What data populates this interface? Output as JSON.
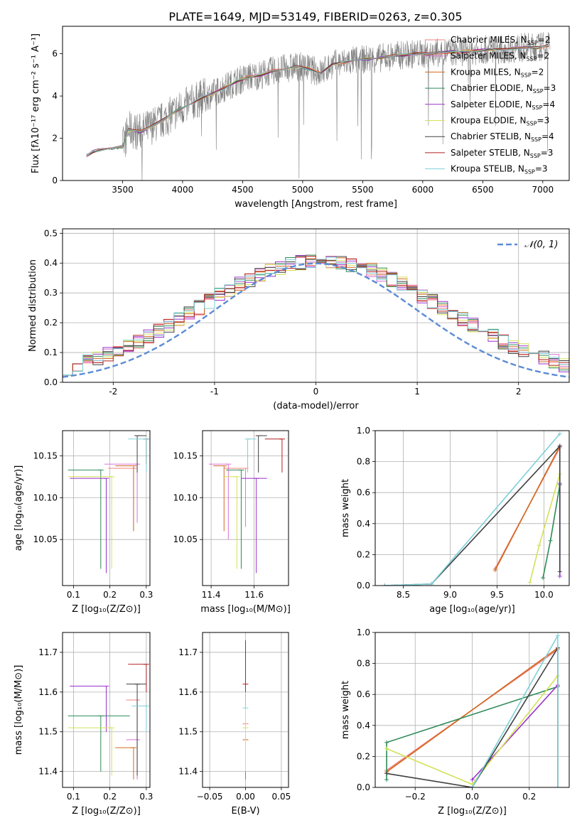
{
  "figure_title": "PLATE=1649, MJD=53149, FIBERID=0263, z=0.305",
  "series_legend": [
    {
      "imf": "Chabrier",
      "lib": "MILES",
      "nssp": "2",
      "color": "#f08080"
    },
    {
      "imf": "Salpeter",
      "lib": "MILES",
      "nssp": "2",
      "color": "#da70d6"
    },
    {
      "imf": "Kroupa",
      "lib": "MILES",
      "nssp": "2",
      "color": "#d2691e"
    },
    {
      "imf": "Chabrier",
      "lib": "ELODIE",
      "nssp": "3",
      "color": "#2e8b57"
    },
    {
      "imf": "Salpeter",
      "lib": "ELODIE",
      "nssp": "4",
      "color": "#9932cc"
    },
    {
      "imf": "Kroupa",
      "lib": "ELODIE",
      "nssp": "3",
      "color": "#d4e157"
    },
    {
      "imf": "Chabrier",
      "lib": "STELIB",
      "nssp": "4",
      "color": "#404040"
    },
    {
      "imf": "Salpeter",
      "lib": "STELIB",
      "nssp": "3",
      "color": "#b22222"
    },
    {
      "imf": "Kroupa",
      "lib": "STELIB",
      "nssp": "3",
      "color": "#7fd1d8"
    }
  ],
  "legend_sub": "SSP",
  "chart_data": [
    {
      "id": "spectrum",
      "type": "line",
      "xlabel": "wavelength [Angstrom, rest frame]",
      "ylabel": "Flux [fλ10⁻¹⁷ erg cm⁻² s⁻¹ A⁻¹]",
      "xlim": [
        3000,
        7220
      ],
      "ylim": [
        0,
        7.3
      ],
      "xticks": [
        3500,
        4000,
        4500,
        5000,
        5500,
        6000,
        6500,
        7000
      ],
      "yticks": [
        0,
        2,
        4,
        6
      ],
      "data_color": "#808080",
      "model_x": [
        3200,
        3250,
        3300,
        3400,
        3500,
        3550,
        3650,
        3750,
        3850,
        3950,
        4050,
        4150,
        4250,
        4350,
        4450,
        4550,
        4650,
        4750,
        4850,
        4950,
        5050,
        5150,
        5250,
        5350,
        5450,
        5550,
        5650,
        5750,
        5850,
        5950,
        6050,
        6150,
        6250,
        6350,
        6450,
        6550,
        6650,
        6750,
        6850,
        6950,
        7050
      ],
      "model_y": [
        1.2,
        1.35,
        1.45,
        1.5,
        1.6,
        2.4,
        2.3,
        2.6,
        2.9,
        3.3,
        3.6,
        3.9,
        4.1,
        4.4,
        4.7,
        4.9,
        5.0,
        5.2,
        5.3,
        5.4,
        5.3,
        5.1,
        5.5,
        5.6,
        5.7,
        5.75,
        5.8,
        5.9,
        5.95,
        6.0,
        6.0,
        6.05,
        6.1,
        6.1,
        6.15,
        6.2,
        6.2,
        6.25,
        6.3,
        6.3,
        6.4
      ]
    },
    {
      "id": "residuals",
      "type": "histogram",
      "xlabel": "(data-model)/error",
      "ylabel": "Normed distribution",
      "xlim": [
        -2.5,
        2.5
      ],
      "ylim": [
        0,
        0.515
      ],
      "xticks": [
        -2,
        -1,
        0,
        1,
        2
      ],
      "yticks": [
        0.0,
        0.1,
        0.2,
        0.3,
        0.4,
        0.5
      ],
      "gauss_label": "𝒩(0, 1)",
      "gauss_color": "#5b8bd6"
    },
    {
      "id": "age_vs_Z",
      "type": "errorbar",
      "xlabel": "Z [log₁₀(Z/Z⊙)]",
      "ylabel": "age  [log₁₀(age/yr)]",
      "xlim": [
        0.07,
        0.31
      ],
      "ylim": [
        9.995,
        10.18
      ],
      "xticks": [
        0.1,
        0.2,
        0.3
      ],
      "yticks": [
        10.05,
        10.1,
        10.15
      ],
      "points": [
        {
          "s": 0,
          "x": 0.265,
          "y": 10.135,
          "xerr": [
            0.07,
            0.0
          ],
          "yerr": [
            0.0,
            0.0
          ],
          "ylow": 10.06
        },
        {
          "s": 1,
          "x": 0.275,
          "y": 10.14,
          "xerr": [
            0.09,
            0.0
          ],
          "yerr": [
            0.0,
            0.0
          ],
          "ylow": 10.07
        },
        {
          "s": 2,
          "x": 0.265,
          "y": 10.138,
          "xerr": [
            0.05,
            0.0
          ],
          "yerr": [
            0.0,
            0.0
          ],
          "ylow": 10.06
        },
        {
          "s": 3,
          "x": 0.175,
          "y": 10.133,
          "xerr": [
            0.09,
            0.0
          ],
          "yerr": [
            0.0,
            0.0
          ],
          "ylow": 10.015
        },
        {
          "s": 4,
          "x": 0.19,
          "y": 10.123,
          "xerr": [
            0.1,
            0.0
          ],
          "yerr": [
            0.0,
            0.0
          ],
          "ylow": 10.01
        },
        {
          "s": 5,
          "x": 0.205,
          "y": 10.125,
          "xerr": [
            0.12,
            0.0
          ],
          "yerr": [
            0.0,
            0.0
          ],
          "ylow": 10.015
        },
        {
          "s": 6,
          "x": 0.275,
          "y": 10.174,
          "xerr": [
            0.0,
            0.025
          ],
          "yerr": [
            0.0,
            0.0
          ],
          "ylow": 10.13
        },
        {
          "s": 7,
          "x": 0.3,
          "y": 10.17,
          "xerr": [
            0.0,
            0.0
          ],
          "yerr": [
            0.0,
            0.0
          ],
          "ylow": 10.14
        },
        {
          "s": 8,
          "x": 0.3,
          "y": 10.17,
          "xerr": [
            0.05,
            0.0
          ],
          "yerr": [
            0.0,
            0.0
          ],
          "ylow": 10.13
        }
      ]
    },
    {
      "id": "age_vs_mass",
      "type": "errorbar",
      "xlabel": "mass [log₁₀(M/M⊙)]",
      "ylabel": "",
      "xlim": [
        11.36,
        11.76
      ],
      "ylim": [
        9.995,
        10.18
      ],
      "xticks": [
        11.4,
        11.6
      ],
      "yticks": [
        10.05,
        10.1,
        10.15
      ],
      "points": [
        {
          "s": 0,
          "x": 11.56,
          "y": 10.135,
          "xerr": [
            0.1,
            0.0
          ],
          "ylow": 10.065
        },
        {
          "s": 1,
          "x": 11.48,
          "y": 10.14,
          "xerr": [
            0.09,
            0.0
          ],
          "ylow": 10.05
        },
        {
          "s": 2,
          "x": 11.46,
          "y": 10.138,
          "xerr": [
            0.05,
            0.0
          ],
          "ylow": 10.06
        },
        {
          "s": 3,
          "x": 11.54,
          "y": 10.133,
          "xerr": [
            0.07,
            0.0
          ],
          "ylow": 10.015
        },
        {
          "s": 4,
          "x": 11.61,
          "y": 10.123,
          "xerr": [
            0.07,
            0.05
          ],
          "ylow": 10.01
        },
        {
          "s": 5,
          "x": 11.52,
          "y": 10.125,
          "xerr": [
            0.06,
            0.0
          ],
          "ylow": 10.015
        },
        {
          "s": 6,
          "x": 11.62,
          "y": 10.174,
          "xerr": [
            0.0,
            0.04
          ],
          "ylow": 10.13
        },
        {
          "s": 7,
          "x": 11.73,
          "y": 10.17,
          "xerr": [
            0.08,
            0.0
          ],
          "ylow": 10.13
        },
        {
          "s": 8,
          "x": 11.57,
          "y": 10.17,
          "xerr": [
            0.0,
            0.04
          ],
          "ylow": 10.13
        }
      ]
    },
    {
      "id": "weight_vs_age",
      "type": "line",
      "xlabel": "age  [log₁₀(age/yr)]",
      "ylabel": "mass weight",
      "xlim": [
        8.2,
        10.27
      ],
      "ylim": [
        0,
        1.0
      ],
      "xticks": [
        8.5,
        9.0,
        9.5,
        10.0
      ],
      "yticks": [
        0.0,
        0.2,
        0.4,
        0.6,
        0.8,
        1.0
      ],
      "series": [
        {
          "s": 0,
          "x": [
            9.48,
            10.17
          ],
          "y": [
            0.11,
            0.89
          ]
        },
        {
          "s": 2,
          "x": [
            9.48,
            10.17
          ],
          "y": [
            0.1,
            0.9
          ]
        },
        {
          "s": 3,
          "x": [
            9.99,
            10.07,
            10.17
          ],
          "y": [
            0.05,
            0.29,
            0.65
          ]
        },
        {
          "s": 4,
          "x": [
            10.17,
            10.17
          ],
          "y": [
            0.06,
            0.66
          ]
        },
        {
          "s": 5,
          "x": [
            9.85,
            9.95,
            10.17
          ],
          "y": [
            0.02,
            0.26,
            0.72
          ]
        },
        {
          "s": 6,
          "x": [
            8.3,
            8.8,
            10.17
          ],
          "y": [
            0.0,
            0.01,
            0.9
          ]
        },
        {
          "s": 6,
          "x": [
            10.17,
            10.17
          ],
          "y": [
            0.09,
            0.9
          ]
        },
        {
          "s": 8,
          "x": [
            8.3,
            8.8,
            10.17
          ],
          "y": [
            0.0,
            0.01,
            0.98
          ]
        }
      ]
    },
    {
      "id": "mass_vs_Z",
      "type": "errorbar",
      "xlabel": "Z [log₁₀(Z/Z⊙)]",
      "ylabel": "mass [log₁₀(M/M⊙)]",
      "xlim": [
        0.07,
        0.31
      ],
      "ylim": [
        11.36,
        11.75
      ],
      "xticks": [
        0.1,
        0.2,
        0.3
      ],
      "yticks": [
        11.4,
        11.5,
        11.6,
        11.7
      ],
      "points": [
        {
          "s": 0,
          "x": 0.275,
          "y": 11.58,
          "xerr": [
            0.03,
            0.0
          ],
          "ylow": 11.43
        },
        {
          "s": 1,
          "x": 0.275,
          "y": 11.48,
          "xerr": [
            0.03,
            0.0
          ],
          "ylow": 11.38
        },
        {
          "s": 2,
          "x": 0.265,
          "y": 11.46,
          "xerr": [
            0.05,
            0.0
          ],
          "ylow": 11.38
        },
        {
          "s": 3,
          "x": 0.175,
          "y": 11.54,
          "xerr": [
            0.09,
            0.08
          ],
          "ylow": 11.4
        },
        {
          "s": 4,
          "x": 0.19,
          "y": 11.615,
          "xerr": [
            0.1,
            0.0
          ],
          "ylow": 11.5
        },
        {
          "s": 5,
          "x": 0.205,
          "y": 11.51,
          "xerr": [
            0.12,
            0.0
          ],
          "ylow": 11.39
        },
        {
          "s": 6,
          "x": 0.275,
          "y": 11.62,
          "xerr": [
            0.03,
            0.025
          ],
          "ylow": 11.39
        },
        {
          "s": 7,
          "x": 0.3,
          "y": 11.67,
          "xerr": [
            0.05,
            0.0
          ],
          "ylow": 11.6
        },
        {
          "s": 8,
          "x": 0.3,
          "y": 11.565,
          "xerr": [
            0.04,
            0.0
          ],
          "ylow": 11.5
        }
      ]
    },
    {
      "id": "mass_vs_ebv",
      "type": "errorbar",
      "xlabel": "E(B-V)",
      "ylabel": "",
      "xlim": [
        -0.06,
        0.06
      ],
      "ylim": [
        11.36,
        11.75
      ],
      "xticks": [
        -0.05,
        0.0,
        0.05
      ],
      "xticklabels": [
        "−0.05",
        "0.00",
        "0.05"
      ],
      "yticks": [
        11.4,
        11.5,
        11.6,
        11.7
      ],
      "points": [
        {
          "s": 7,
          "x": 0.0,
          "y": 11.62,
          "ylow": 11.52,
          "yhigh": 11.73
        },
        {
          "s": 0,
          "x": 0.0,
          "y": 11.52,
          "ylow": 11.4,
          "yhigh": 11.6
        },
        {
          "s": 2,
          "x": 0.0,
          "y": 11.48,
          "ylow": 11.38,
          "yhigh": 11.55
        },
        {
          "s": 8,
          "x": 0.0,
          "y": 11.56,
          "ylow": 11.45,
          "yhigh": 11.6
        },
        {
          "s": 5,
          "x": 0.0,
          "y": 11.51,
          "ylow": 11.4,
          "yhigh": 11.56
        }
      ]
    },
    {
      "id": "weight_vs_Z",
      "type": "line",
      "xlabel": "Z [log₁₀(Z/Z⊙)]",
      "ylabel": "mass weight",
      "xlim": [
        -0.34,
        0.34
      ],
      "ylim": [
        0,
        1.0
      ],
      "xticks": [
        -0.2,
        0.0,
        0.2
      ],
      "xticklabels": [
        "−0.2",
        "0.0",
        "0.2"
      ],
      "yticks": [
        0.0,
        0.2,
        0.4,
        0.6,
        0.8,
        1.0
      ],
      "series": [
        {
          "s": 0,
          "x": [
            -0.3,
            0.3
          ],
          "y": [
            0.11,
            0.89
          ]
        },
        {
          "s": 2,
          "x": [
            -0.3,
            0.3
          ],
          "y": [
            0.1,
            0.9
          ]
        },
        {
          "s": 3,
          "x": [
            -0.3,
            -0.3,
            0.3
          ],
          "y": [
            0.05,
            0.29,
            0.65
          ]
        },
        {
          "s": 4,
          "x": [
            0.0,
            0.3
          ],
          "y": [
            0.05,
            0.66
          ]
        },
        {
          "s": 5,
          "x": [
            -0.3,
            0.0,
            0.3
          ],
          "y": [
            0.25,
            0.02,
            0.72
          ]
        },
        {
          "s": 6,
          "x": [
            -0.3,
            0.0,
            0.3,
            0.3
          ],
          "y": [
            0.09,
            0.0,
            0.9,
            0.0
          ]
        },
        {
          "s": 8,
          "x": [
            0.0,
            0.3,
            0.3
          ],
          "y": [
            0.0,
            0.98,
            0.0
          ]
        }
      ]
    }
  ]
}
